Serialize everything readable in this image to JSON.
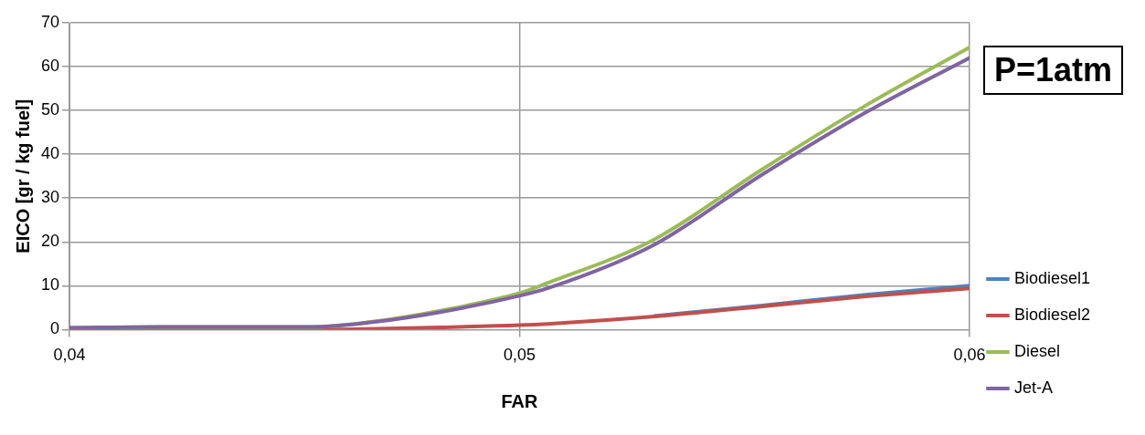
{
  "chart_data": {
    "type": "line",
    "xlabel": "FAR",
    "ylabel": "EICO [gr / kg fuel]",
    "annotations": [
      "P=1atm"
    ],
    "x": [
      0.04,
      0.042,
      0.0454,
      0.04682,
      0.04824,
      0.05,
      0.05062,
      0.053,
      0.0554,
      0.05774,
      0.06
    ],
    "series": [
      {
        "name": "Biodiesel1",
        "color": "#4f81bd",
        "values": [
          null,
          null,
          null,
          null,
          null,
          null,
          null,
          3.1,
          5.5,
          8.0,
          10.0
        ]
      },
      {
        "name": "Biodiesel2",
        "color": "#c0504d",
        "values": [
          0,
          0,
          0,
          0.2,
          0.5,
          1.0,
          1.3,
          3.0,
          5.3,
          7.6,
          9.4
        ]
      },
      {
        "name": "Diesel",
        "color": "#9bbb59",
        "values": [
          0.4,
          0.6,
          0.6,
          1.9,
          4.3,
          8.3,
          10.6,
          20.6,
          36.6,
          51.4,
          64.4
        ]
      },
      {
        "name": "Jet-A",
        "color": "#8064a2",
        "values": [
          0.4,
          0.6,
          0.6,
          1.8,
          4.0,
          7.7,
          9.4,
          19.4,
          35.4,
          49.8,
          62.0
        ]
      }
    ],
    "xlim": [
      0.04,
      0.06
    ],
    "xticks": [
      {
        "value": 0.04,
        "label": "0,04"
      },
      {
        "value": 0.05,
        "label": "0,05"
      },
      {
        "value": 0.06,
        "label": "0,06"
      }
    ],
    "ylim": [
      0,
      70
    ],
    "yticks": [
      0,
      10,
      20,
      30,
      40,
      50,
      60,
      70
    ],
    "grid": true,
    "legend": "right",
    "marker": "none",
    "line_style": "solid"
  }
}
